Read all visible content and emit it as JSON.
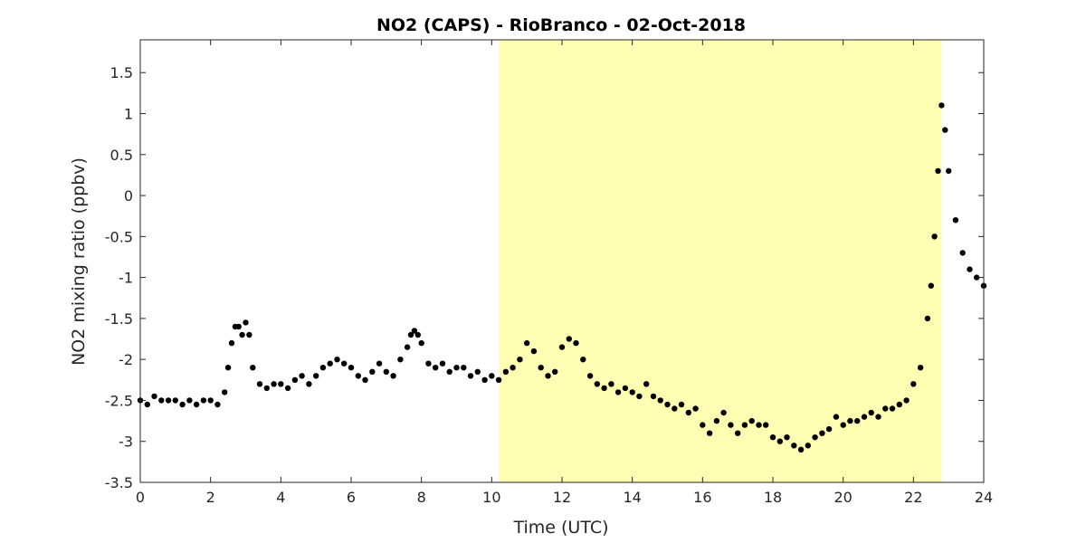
{
  "chart_data": {
    "type": "scatter",
    "title": "NO2 (CAPS) - RioBranco - 02-Oct-2018",
    "xlabel": "Time (UTC)",
    "ylabel": "NO2 mixing ratio (ppbv)",
    "xlim": [
      0,
      24
    ],
    "ylim": [
      -3.5,
      1.9
    ],
    "xticks": [
      0,
      2,
      4,
      6,
      8,
      10,
      12,
      14,
      16,
      18,
      20,
      22,
      24
    ],
    "xtick_labels": [
      "0",
      "2",
      "4",
      "6",
      "8",
      "10",
      "12",
      "14",
      "16",
      "18",
      "20",
      "22",
      "24"
    ],
    "yticks": [
      -3.5,
      -3,
      -2.5,
      -2,
      -1.5,
      -1,
      -0.5,
      0,
      0.5,
      1,
      1.5
    ],
    "ytick_labels": [
      "-3.5",
      "-3",
      "-2.5",
      "-2",
      "-1.5",
      "-1",
      "-0.5",
      "0",
      "0.5",
      "1",
      "1.5"
    ],
    "grid": false,
    "highlight_span": {
      "x_start": 10.2,
      "x_end": 22.8,
      "color": "#ffffb3"
    },
    "marker_color": "#000000",
    "series": [
      {
        "x": [
          0.0,
          0.2,
          0.4,
          0.6,
          0.8,
          1.0,
          1.2,
          1.4,
          1.6,
          1.8,
          2.0,
          2.2,
          2.4,
          2.5,
          2.6,
          2.7,
          2.8,
          2.9,
          3.0,
          3.1,
          3.2,
          3.4,
          3.6,
          3.8,
          4.0,
          4.2,
          4.4,
          4.6,
          4.8,
          5.0,
          5.2,
          5.4,
          5.6,
          5.8,
          6.0,
          6.2,
          6.4,
          6.6,
          6.8,
          7.0,
          7.2,
          7.4,
          7.6,
          7.7,
          7.8,
          7.9,
          8.0,
          8.2,
          8.4,
          8.6,
          8.8,
          9.0,
          9.2,
          9.4,
          9.6,
          9.8,
          10.0,
          10.2,
          10.4,
          10.6,
          10.8,
          11.0,
          11.2,
          11.4,
          11.6,
          11.8,
          12.0,
          12.2,
          12.4,
          12.6,
          12.8,
          13.0,
          13.2,
          13.4,
          13.6,
          13.8,
          14.0,
          14.2,
          14.4,
          14.6,
          14.8,
          15.0,
          15.2,
          15.4,
          15.6,
          15.8,
          16.0,
          16.2,
          16.4,
          16.6,
          16.8,
          17.0,
          17.2,
          17.4,
          17.6,
          17.8,
          18.0,
          18.2,
          18.4,
          18.6,
          18.8,
          19.0,
          19.2,
          19.4,
          19.6,
          19.8,
          20.0,
          20.2,
          20.4,
          20.6,
          20.8,
          21.0,
          21.2,
          21.4,
          21.6,
          21.8,
          22.0,
          22.2,
          22.4,
          22.5,
          22.6,
          22.7,
          22.8,
          22.9,
          23.0,
          23.2,
          23.4,
          23.6,
          23.8,
          24.0
        ],
        "y": [
          -2.5,
          -2.55,
          -2.45,
          -2.5,
          -2.5,
          -2.5,
          -2.55,
          -2.5,
          -2.55,
          -2.5,
          -2.5,
          -2.55,
          -2.4,
          -2.1,
          -1.8,
          -1.6,
          -1.6,
          -1.7,
          -1.55,
          -1.7,
          -2.1,
          -2.3,
          -2.35,
          -2.3,
          -2.3,
          -2.35,
          -2.25,
          -2.2,
          -2.3,
          -2.2,
          -2.1,
          -2.05,
          -2.0,
          -2.05,
          -2.1,
          -2.2,
          -2.25,
          -2.15,
          -2.05,
          -2.15,
          -2.2,
          -2.0,
          -1.85,
          -1.7,
          -1.65,
          -1.7,
          -1.8,
          -2.05,
          -2.1,
          -2.05,
          -2.15,
          -2.1,
          -2.1,
          -2.2,
          -2.15,
          -2.25,
          -2.2,
          -2.25,
          -2.15,
          -2.1,
          -2.0,
          -1.8,
          -1.9,
          -2.1,
          -2.2,
          -2.15,
          -1.85,
          -1.75,
          -1.8,
          -2.0,
          -2.2,
          -2.3,
          -2.35,
          -2.3,
          -2.4,
          -2.35,
          -2.4,
          -2.45,
          -2.3,
          -2.45,
          -2.5,
          -2.55,
          -2.6,
          -2.55,
          -2.65,
          -2.6,
          -2.8,
          -2.9,
          -2.75,
          -2.65,
          -2.8,
          -2.9,
          -2.8,
          -2.75,
          -2.8,
          -2.8,
          -2.95,
          -3.0,
          -2.95,
          -3.05,
          -3.1,
          -3.05,
          -2.95,
          -2.9,
          -2.85,
          -2.7,
          -2.8,
          -2.75,
          -2.75,
          -2.7,
          -2.65,
          -2.7,
          -2.6,
          -2.6,
          -2.55,
          -2.5,
          -2.3,
          -2.1,
          -1.5,
          -1.1,
          -0.5,
          0.3,
          1.1,
          0.8,
          0.3,
          -0.3,
          -0.7,
          -0.9,
          -1.0,
          -1.1
        ]
      }
    ]
  }
}
